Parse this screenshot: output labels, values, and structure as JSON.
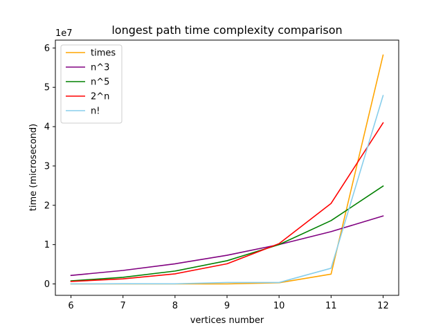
{
  "chart_data": {
    "type": "line",
    "title": "longest path time complexity comparison",
    "xlabel": "vertices number",
    "ylabel": "time (microsecond)",
    "y_offset_label": "1e7",
    "xlim": [
      5.7,
      12.3
    ],
    "ylim": [
      -2900000,
      62000000
    ],
    "x_ticks": [
      6,
      7,
      8,
      9,
      10,
      11,
      12
    ],
    "y_ticks": [
      0,
      10000000,
      20000000,
      30000000,
      40000000,
      50000000,
      60000000
    ],
    "y_tick_labels": [
      "0",
      "1",
      "2",
      "3",
      "4",
      "5",
      "6"
    ],
    "grid": false,
    "legend_position": "top-left",
    "x": [
      6,
      7,
      8,
      9,
      10,
      11,
      12
    ],
    "series": [
      {
        "name": "times",
        "color": "#ffa500",
        "values": [
          0,
          0,
          0,
          0,
          300000,
          2500000,
          58200000
        ]
      },
      {
        "name": "n^3",
        "color": "#800080",
        "values": [
          2160000,
          3430000,
          5120000,
          7290000,
          10000000,
          13310000,
          17280000
        ]
      },
      {
        "name": "n^5",
        "color": "#008000",
        "values": [
          777600,
          1680700,
          3276800,
          5904900,
          10000000,
          16105100,
          24883200
        ]
      },
      {
        "name": "2^n",
        "color": "#ff0000",
        "values": [
          640000,
          1280000,
          2560000,
          5120000,
          10240000,
          20480000,
          40960000
        ]
      },
      {
        "name": "n!",
        "color": "#87ceeb",
        "values": [
          7200,
          50400,
          40320,
          362880,
          362880,
          3991680,
          47900160
        ]
      }
    ]
  }
}
